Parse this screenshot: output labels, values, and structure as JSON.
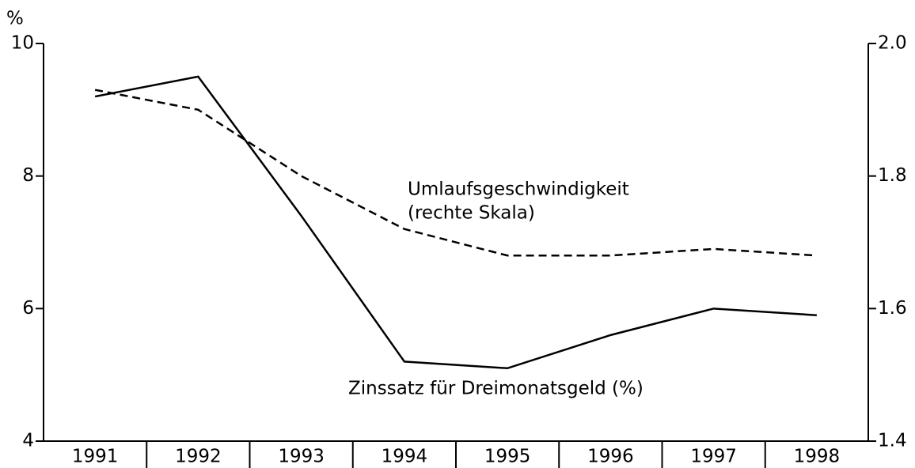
{
  "chart_data": {
    "type": "line",
    "y_unit_label": "%",
    "categories": [
      "1991",
      "1992",
      "1993",
      "1994",
      "1995",
      "1996",
      "1997",
      "1998"
    ],
    "series": [
      {
        "name": "Zinssatz für Dreimonatsgeld (%)",
        "color": "#000000",
        "style": "solid",
        "axis": "y",
        "values": [
          9.2,
          9.5,
          7.4,
          5.2,
          5.1,
          5.6,
          6.0,
          5.9
        ]
      },
      {
        "name": "Umlaufsgeschwindigkeit",
        "color": "#000000",
        "style": "dashed",
        "axis": "y2",
        "values": [
          1.93,
          1.9,
          1.8,
          1.72,
          1.68,
          1.68,
          1.69,
          1.68
        ]
      }
    ],
    "annotations": [
      "(rechte Skala)"
    ],
    "ylim": [
      4,
      10
    ],
    "yticks": [
      4,
      6,
      8,
      10
    ],
    "y2lim": [
      1.4,
      2.0
    ],
    "y2ticks": [
      1.4,
      1.6,
      1.8,
      {
        "value": 2.0,
        "label": "2.0"
      }
    ],
    "grid": false
  }
}
